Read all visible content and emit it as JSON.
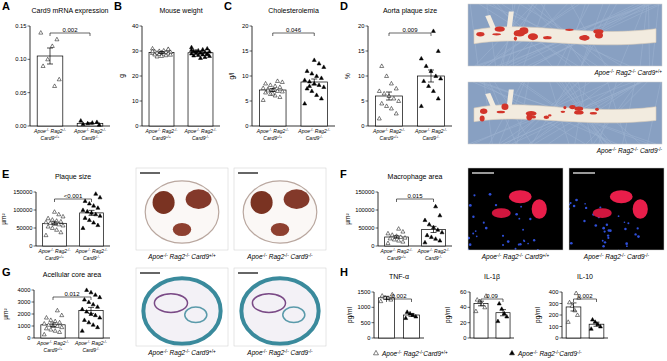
{
  "chart_data": [
    {
      "panel": "A",
      "type": "bar",
      "title": "Card9 mRNA expression",
      "categories": [
        "Apoe-/- Rag2-/- Card9+/+",
        "Apoe-/- Rag2-/- Card9-/-"
      ],
      "values": [
        0.105,
        0.004
      ],
      "errors": [
        0.012,
        0.001
      ],
      "points": [
        [
          0.14,
          0.13,
          0.12,
          0.1,
          0.09,
          0.07,
          0.06
        ],
        [
          0.008,
          0.006,
          0.005,
          0.004,
          0.003,
          0.002
        ]
      ],
      "ylim": [
        0,
        0.15
      ],
      "yticks": [
        {
          "value": 0,
          "label": "0.00"
        },
        {
          "value": 0.05,
          "label": "0.05"
        },
        {
          "value": 0.1,
          "label": "0.10"
        },
        {
          "value": 0.15,
          "label": "0.15"
        }
      ],
      "p_value": "0.002"
    },
    {
      "panel": "B",
      "type": "bar",
      "title": "Mouse weight",
      "y_label": "g",
      "categories": [
        "Apoe-/- Rag2-/- Card9+/+",
        "Apoe-/- Rag2-/- Card9-/-"
      ],
      "values": [
        29.4,
        29.3
      ],
      "errors": [
        0.4,
        0.5
      ],
      "points": [
        [
          31,
          30.5,
          30.2,
          30,
          29.8,
          29.6,
          29.5,
          29.4,
          29.3,
          29.2,
          29,
          28.9,
          28.8,
          28.6,
          28.5,
          28.3,
          28,
          27.8,
          29.9,
          30.8
        ],
        [
          31.5,
          31,
          30.6,
          30.2,
          30,
          29.8,
          29.6,
          29.4,
          29.2,
          29,
          28.8,
          28.6,
          28.4,
          28.2,
          28,
          27.6,
          27.2,
          29.9,
          30.4,
          28.9
        ]
      ],
      "ylim": [
        0,
        40
      ],
      "yticks": [
        0,
        10,
        20,
        30,
        40
      ]
    },
    {
      "panel": "C",
      "type": "bar",
      "title": "Cholesterolemia",
      "y_label": "g/l",
      "categories": [
        "Apoe-/- Rag2-/- Card9+/+",
        "Apoe-/- Rag2-/- Card9-/-"
      ],
      "values": [
        7.2,
        8.8
      ],
      "errors": [
        0.3,
        0.6
      ],
      "points": [
        [
          5.2,
          5.8,
          6.1,
          6.4,
          6.7,
          6.9,
          7,
          7.2,
          7.4,
          7.6,
          7.8,
          8,
          8.2,
          8.5,
          8.8,
          9,
          6.5,
          7.1
        ],
        [
          4.5,
          5.5,
          6.2,
          7,
          7.5,
          7.8,
          8.2,
          8.5,
          8.9,
          9.2,
          9.6,
          10,
          10.5,
          11,
          11.8,
          12.5,
          13.2,
          8
        ]
      ],
      "ylim": [
        0,
        20
      ],
      "yticks": [
        0,
        5,
        10,
        15,
        20
      ],
      "p_value": "0.046"
    },
    {
      "panel": "D",
      "type": "bar",
      "title": "Aorta plaque size",
      "y_label": "%",
      "categories": [
        "Apoe-/- Rag2-/- Card9+/+",
        "Apoe-/- Rag2-/- Card9-/-"
      ],
      "values": [
        6,
        10
      ],
      "errors": [
        0.8,
        1.2
      ],
      "points": [
        [
          1.5,
          2.5,
          3.5,
          4,
          4.5,
          5,
          5.5,
          6,
          6.5,
          7,
          7.5,
          8.5,
          10,
          12
        ],
        [
          4,
          5.5,
          7,
          8,
          9,
          9.5,
          10,
          11,
          12,
          13.5,
          15,
          19
        ]
      ],
      "ylim": [
        0,
        20
      ],
      "yticks": [
        0,
        5,
        10,
        15,
        20
      ],
      "p_value": "0.009",
      "image_captions": [
        "Apoe-/- Rag2-/- Card9+/+",
        "Apoe-/- Rag2-/- Card9-/-"
      ]
    },
    {
      "panel": "E",
      "type": "bar",
      "title": "Plaque size",
      "y_label": "µm²",
      "categories": [
        "Apoe-/- Rag2-/- Card9+/+",
        "Apoe-/- Rag2-/- Card9-/-"
      ],
      "values": [
        63000,
        92000
      ],
      "errors": [
        4000,
        7000
      ],
      "points": [
        [
          30000,
          38000,
          45000,
          50000,
          54000,
          57000,
          60000,
          62000,
          64000,
          66000,
          68000,
          70000,
          73000,
          77000,
          82000,
          88000,
          95000
        ],
        [
          50000,
          58000,
          65000,
          72000,
          78000,
          84000,
          88000,
          92000,
          96000,
          100000,
          106000,
          112000,
          118000,
          125000,
          135000,
          145000
        ]
      ],
      "ylim": [
        0,
        150000
      ],
      "yticks": [
        0,
        50000,
        100000,
        150000
      ],
      "p_value": "<0.001",
      "image_captions": [
        "Apoe-/- Rag2-/- Card9+/+",
        "Apoe-/- Rag2-/- Card9-/-"
      ]
    },
    {
      "panel": "F",
      "type": "bar",
      "title": "Macrophage area",
      "y_label": "µm²",
      "categories": [
        "Apoe-/- Rag2-/- Card9+/+",
        "Apoe-/- Rag2-/- Card9-/-"
      ],
      "values": [
        25000,
        46000
      ],
      "errors": [
        3500,
        8500
      ],
      "points": [
        [
          8000,
          12000,
          15000,
          18000,
          21000,
          23000,
          25000,
          28000,
          31000,
          35000,
          40000,
          48000
        ],
        [
          10000,
          15000,
          20000,
          25000,
          30000,
          38000,
          45000,
          52000,
          60000,
          72000,
          85000,
          110000
        ]
      ],
      "ylim": [
        0,
        150000
      ],
      "yticks": [
        0,
        50000,
        100000,
        150000
      ],
      "p_value": "0.015",
      "image_captions": [
        "Apoe-/- Rag2-/- Card9+/+",
        "Apoe-/- Rag2-/- Card9-/-"
      ]
    },
    {
      "panel": "G",
      "type": "bar",
      "title": "Acellular core area",
      "y_label": "µm²",
      "categories": [
        "Apoe-/- Rag2-/- Card9+/+",
        "Apoe-/- Rag2-/- Card9-/-"
      ],
      "values": [
        1100,
        2300
      ],
      "errors": [
        150,
        250
      ],
      "points": [
        [
          300,
          500,
          600,
          700,
          800,
          900,
          1000,
          1000,
          1100,
          1200,
          1300,
          1400,
          1500,
          1700,
          1900,
          2300
        ],
        [
          600,
          900,
          1100,
          1300,
          1500,
          1700,
          1900,
          2000,
          2200,
          2400,
          2600,
          2800,
          3000,
          3200,
          3400,
          3600,
          3800,
          4000
        ]
      ],
      "ylim": [
        0,
        4000
      ],
      "yticks": [
        0,
        1000,
        2000,
        3000,
        4000
      ],
      "p_value": "0.012",
      "image_captions": [
        "Apoe-/- Rag2-/- Card9+/+",
        "Apoe-/- Rag2-/- Card9-/-"
      ]
    },
    {
      "panel": "H",
      "type": "bar",
      "title": "TNF-α",
      "y_label": "pg/ml",
      "categories": [
        null,
        null
      ],
      "values": [
        1310,
        750
      ],
      "errors": [
        50,
        45
      ],
      "points": [
        [
          1200,
          1250,
          1300,
          1320,
          1380,
          1420
        ],
        [
          650,
          700,
          750,
          800,
          850
        ]
      ],
      "ylim": [
        0,
        1500
      ],
      "yticks": [
        0,
        500,
        1000,
        1500
      ],
      "p_value": "0.002"
    },
    {
      "type": "bar",
      "title": "IL-1β",
      "y_label": "pg/ml",
      "categories": [
        null,
        null
      ],
      "values": [
        45,
        33
      ],
      "errors": [
        3,
        4
      ],
      "points": [
        [
          35,
          40,
          44,
          48,
          50,
          55
        ],
        [
          22,
          28,
          32,
          38,
          45
        ]
      ],
      "ylim": [
        0,
        60
      ],
      "yticks": [
        0,
        20,
        40,
        60
      ],
      "p_value": "0.09"
    },
    {
      "type": "bar",
      "title": "IL-10",
      "y_label": "pg/ml",
      "categories": [
        null,
        null
      ],
      "values": [
        270,
        120
      ],
      "errors": [
        35,
        18
      ],
      "points": [
        [
          140,
          200,
          240,
          280,
          310,
          350,
          390
        ],
        [
          80,
          100,
          120,
          140,
          160
        ]
      ],
      "ylim": [
        0,
        400
      ],
      "yticks": [
        0,
        100,
        200,
        300,
        400
      ],
      "p_value": "0.002"
    }
  ],
  "legend_entries": [
    {
      "name": "Apoe-/- Rag2-/-Card9+/+",
      "marker": "triangle-open"
    },
    {
      "name": "Apoe-/- Rag2-/-Card9-/-",
      "marker": "triangle"
    }
  ]
}
